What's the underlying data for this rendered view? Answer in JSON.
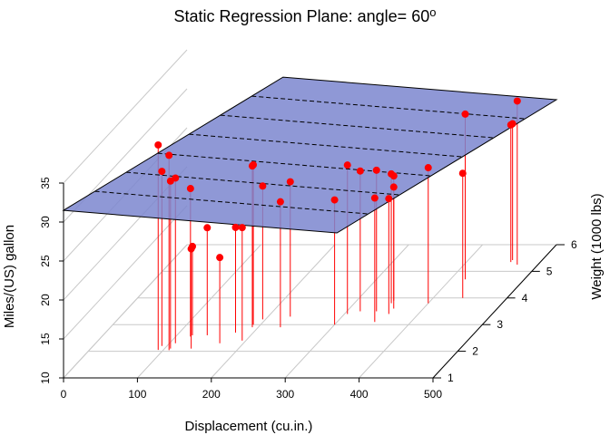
{
  "chart_data": {
    "type": "scatter",
    "title": "Static Regression Plane: angle= 60",
    "title_degree_symbol": "o",
    "xlabel": "Displacement (cu.in.)",
    "ylabel": "Miles/(US) gallon",
    "zlabel": "Weight (1000 lbs)",
    "xlim": [
      0,
      500
    ],
    "zlim": [
      10,
      35
    ],
    "ylim_depth": [
      1,
      6
    ],
    "x_ticks": [
      "0",
      "100",
      "200",
      "300",
      "400",
      "500"
    ],
    "z_ticks": [
      "10",
      "15",
      "20",
      "25",
      "30",
      "35"
    ],
    "depth_ticks": [
      "1",
      "2",
      "3",
      "4",
      "5",
      "6"
    ],
    "grid": true,
    "angle": 60,
    "point_color": "#ff0000",
    "plane_color": "#7b86cf",
    "regression_plane": {
      "mpg_at_origin": 31.5,
      "mpg_at_xmax": 28.6
    },
    "points": [
      {
        "disp": 93,
        "weight": 2.2,
        "mpg": 32.4
      },
      {
        "disp": 93,
        "weight": 2.05,
        "mpg": 36.3
      },
      {
        "disp": 108,
        "weight": 2.1,
        "mpg": 31.5
      },
      {
        "disp": 108,
        "weight": 2.04,
        "mpg": 35.0
      },
      {
        "disp": 108,
        "weight": 2.3,
        "mpg": 31.2
      },
      {
        "disp": 120,
        "weight": 2.55,
        "mpg": 29.0
      },
      {
        "disp": 121,
        "weight": 2.6,
        "mpg": 21.4
      },
      {
        "disp": 136,
        "weight": 2.1,
        "mpg": 22.8
      },
      {
        "disp": 141,
        "weight": 2.6,
        "mpg": 23.8
      },
      {
        "disp": 168,
        "weight": 2.3,
        "mpg": 21.0
      },
      {
        "disp": 176,
        "weight": 2.7,
        "mpg": 23.5
      },
      {
        "disp": 190,
        "weight": 3.0,
        "mpg": 30.5
      },
      {
        "disp": 195,
        "weight": 2.4,
        "mpg": 24.5
      },
      {
        "disp": 192,
        "weight": 2.9,
        "mpg": 30.7
      },
      {
        "disp": 196,
        "weight": 3.2,
        "mpg": 27.1
      },
      {
        "disp": 230,
        "weight": 2.9,
        "mpg": 26.1
      },
      {
        "disp": 230,
        "weight": 3.3,
        "mpg": 27.3
      },
      {
        "disp": 300,
        "weight": 3.0,
        "mpg": 26.0
      },
      {
        "disp": 304,
        "weight": 3.4,
        "mpg": 29.1
      },
      {
        "disp": 318,
        "weight": 3.5,
        "mpg": 28.0
      },
      {
        "disp": 340,
        "weight": 3.5,
        "mpg": 28.1
      },
      {
        "disp": 350,
        "weight": 3.8,
        "mpg": 26.6
      },
      {
        "disp": 350,
        "weight": 3.9,
        "mpg": 26.0
      },
      {
        "disp": 351,
        "weight": 3.1,
        "mpg": 25.9
      },
      {
        "disp": 360,
        "weight": 3.6,
        "mpg": 25.6
      },
      {
        "disp": 360,
        "weight": 3.4,
        "mpg": 24.8
      },
      {
        "disp": 400,
        "weight": 3.8,
        "mpg": 27.4
      },
      {
        "disp": 440,
        "weight": 4.0,
        "mpg": 26.0
      },
      {
        "disp": 472,
        "weight": 5.25,
        "mpg": 31.0
      },
      {
        "disp": 460,
        "weight": 5.42,
        "mpg": 27.5
      },
      {
        "disp": 460,
        "weight": 5.35,
        "mpg": 27.6
      },
      {
        "disp": 420,
        "weight": 4.7,
        "mpg": 31.2
      }
    ]
  }
}
